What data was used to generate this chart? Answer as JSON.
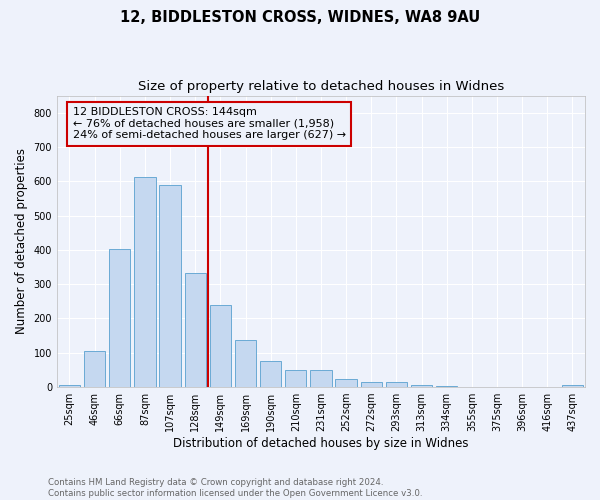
{
  "title_line1": "12, BIDDLESTON CROSS, WIDNES, WA8 9AU",
  "title_line2": "Size of property relative to detached houses in Widnes",
  "xlabel": "Distribution of detached houses by size in Widnes",
  "ylabel": "Number of detached properties",
  "categories": [
    "25sqm",
    "46sqm",
    "66sqm",
    "87sqm",
    "107sqm",
    "128sqm",
    "149sqm",
    "169sqm",
    "190sqm",
    "210sqm",
    "231sqm",
    "252sqm",
    "272sqm",
    "293sqm",
    "313sqm",
    "334sqm",
    "355sqm",
    "375sqm",
    "396sqm",
    "416sqm",
    "437sqm"
  ],
  "values": [
    7,
    105,
    403,
    613,
    590,
    333,
    238,
    136,
    76,
    50,
    50,
    24,
    15,
    15,
    6,
    4,
    0,
    0,
    0,
    0,
    7
  ],
  "bar_color": "#c5d8f0",
  "bar_edgecolor": "#6aaad4",
  "vline_x_index": 6,
  "vline_color": "#cc0000",
  "annotation_text": "12 BIDDLESTON CROSS: 144sqm\n← 76% of detached houses are smaller (1,958)\n24% of semi-detached houses are larger (627) →",
  "annotation_box_edgecolor": "#cc0000",
  "annotation_fontsize": 8,
  "ylim": [
    0,
    850
  ],
  "yticks": [
    0,
    100,
    200,
    300,
    400,
    500,
    600,
    700,
    800
  ],
  "background_color": "#eef2fb",
  "grid_color": "#ffffff",
  "footer_text": "Contains HM Land Registry data © Crown copyright and database right 2024.\nContains public sector information licensed under the Open Government Licence v3.0.",
  "title_fontsize": 10.5,
  "subtitle_fontsize": 9.5,
  "tick_fontsize": 7,
  "xlabel_fontsize": 8.5,
  "ylabel_fontsize": 8.5,
  "footer_fontsize": 6.2,
  "footer_color": "#666666"
}
